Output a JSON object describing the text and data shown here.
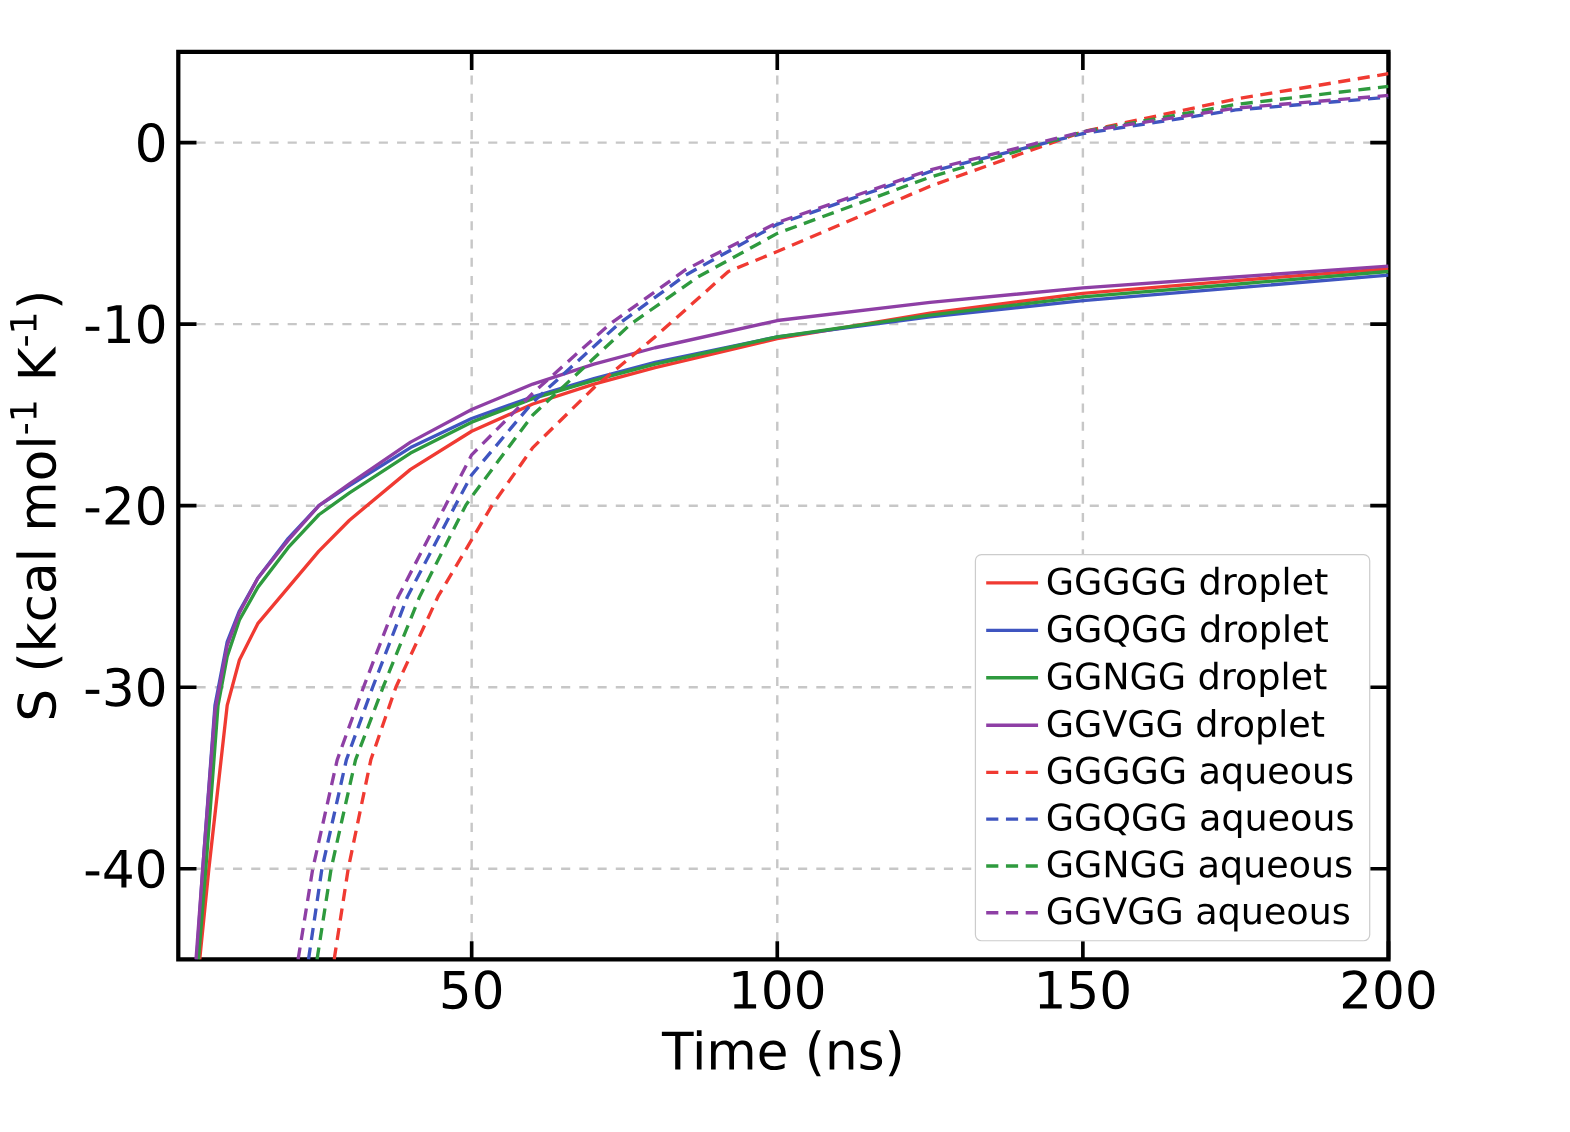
{
  "chart_data": {
    "type": "line",
    "xlabel": "Time (ns)",
    "ylabel": "S (kcal mol$^{-1}$ K$^{-1}$)",
    "xlim": [
      2,
      200
    ],
    "ylim": [
      -45,
      5
    ],
    "xticks": [
      50,
      100,
      150,
      200
    ],
    "yticks": [
      -40,
      -30,
      -20,
      -10,
      0
    ],
    "grid": true,
    "legend": "bottom right",
    "marker": "none",
    "series": [
      {
        "name": "GGGGG droplet",
        "color": "#f03a32",
        "line_style": "solid",
        "x": [
          5.5,
          7,
          10,
          12,
          15,
          20,
          25,
          30,
          40,
          50,
          60,
          70,
          80,
          100,
          125,
          150,
          175,
          200
        ],
        "values": [
          -45,
          -40,
          -31,
          -28.5,
          -26.5,
          -24.5,
          -22.5,
          -20.8,
          -18,
          -15.9,
          -14.4,
          -13.3,
          -12.4,
          -10.8,
          -9.4,
          -8.3,
          -7.6,
          -6.95
        ]
      },
      {
        "name": "GGQGG droplet",
        "color": "#3f55c0",
        "line_style": "solid",
        "x": [
          5,
          6,
          8,
          10,
          12,
          15,
          20,
          25,
          30,
          40,
          50,
          60,
          70,
          80,
          100,
          125,
          150,
          175,
          200
        ],
        "values": [
          -45,
          -40,
          -31,
          -27.5,
          -25.8,
          -24,
          -21.8,
          -20,
          -18.9,
          -16.8,
          -15.2,
          -14,
          -13,
          -12.1,
          -10.7,
          -9.6,
          -8.7,
          -8,
          -7.3
        ]
      },
      {
        "name": "GGNGG droplet",
        "color": "#2e9a3e",
        "line_style": "solid",
        "x": [
          5.3,
          6.5,
          8.5,
          10,
          12,
          15,
          20,
          25,
          30,
          40,
          50,
          60,
          70,
          80,
          100,
          125,
          150,
          175,
          200
        ],
        "values": [
          -45,
          -40,
          -31,
          -28.3,
          -26.3,
          -24.5,
          -22.3,
          -20.5,
          -19.3,
          -17.1,
          -15.4,
          -14.1,
          -13.1,
          -12.2,
          -10.7,
          -9.5,
          -8.5,
          -7.8,
          -7.1
        ]
      },
      {
        "name": "GGVGG droplet",
        "color": "#8e3fa5",
        "line_style": "solid",
        "x": [
          4.9,
          6,
          8,
          10,
          12,
          15,
          20,
          25,
          30,
          40,
          50,
          60,
          70,
          80,
          100,
          125,
          150,
          175,
          200
        ],
        "values": [
          -45,
          -40,
          -31.3,
          -27.7,
          -25.9,
          -24,
          -21.9,
          -20,
          -18.8,
          -16.5,
          -14.7,
          -13.3,
          -12.2,
          -11.3,
          -9.8,
          -8.8,
          -8,
          -7.4,
          -6.8
        ]
      },
      {
        "name": "GGGGG aqueous",
        "color": "#f03a32",
        "line_style": "dashed",
        "x": [
          27.5,
          29.8,
          33.5,
          37.6,
          44.5,
          53.3,
          60,
          70,
          80,
          92,
          100,
          125,
          150,
          175,
          200
        ],
        "values": [
          -45,
          -40,
          -34,
          -30,
          -25,
          -20,
          -16.8,
          -13.5,
          -10.7,
          -7.1,
          -6,
          -2.4,
          0.6,
          2.4,
          3.8
        ]
      },
      {
        "name": "GGQGG aqueous",
        "color": "#3f55c0",
        "line_style": "dashed",
        "x": [
          23.3,
          25.5,
          29.5,
          33.8,
          39.5,
          47.3,
          50,
          60,
          74,
          85,
          100,
          125,
          150,
          175,
          200
        ],
        "values": [
          -45,
          -40,
          -34,
          -30,
          -25,
          -20,
          -18.3,
          -14.3,
          -10,
          -7.3,
          -4.5,
          -1.6,
          0.5,
          1.8,
          2.5
        ]
      },
      {
        "name": "GGNGG aqueous",
        "color": "#2e9a3e",
        "line_style": "dashed",
        "x": [
          24.7,
          27,
          31,
          35.5,
          41.5,
          49,
          50,
          60,
          76,
          87,
          100,
          125,
          150,
          175,
          200
        ],
        "values": [
          -45,
          -40,
          -34,
          -30,
          -25,
          -20,
          -19.5,
          -15,
          -10,
          -7.4,
          -5,
          -1.9,
          0.6,
          2.1,
          3.1
        ]
      },
      {
        "name": "GGVGG aqueous",
        "color": "#8e3fa5",
        "line_style": "dashed",
        "x": [
          21.6,
          24,
          28,
          32.3,
          38,
          45.7,
          50,
          60,
          72.6,
          85,
          100,
          125,
          150,
          175,
          200
        ],
        "values": [
          -45,
          -40,
          -34,
          -30,
          -25,
          -20,
          -17.2,
          -13.8,
          -10,
          -7,
          -4.4,
          -1.5,
          0.6,
          1.9,
          2.6
        ]
      }
    ]
  }
}
